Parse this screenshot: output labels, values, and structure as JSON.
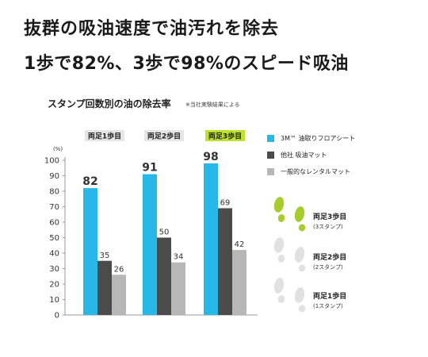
{
  "headline": {
    "line1": "抜群の吸油速度で油汚れを除去",
    "line2": "1歩で82%、3歩で98%のスピード吸油"
  },
  "chart_data": {
    "type": "bar",
    "title": "スタンプ回数別の油の除去率",
    "note": "※当社実験結果による",
    "ylabel": "(%)",
    "ylim": [
      0,
      100
    ],
    "yticks": [
      0,
      10,
      20,
      30,
      40,
      50,
      60,
      70,
      80,
      90,
      100
    ],
    "grid": false,
    "categories": [
      "両足1歩目",
      "両足2歩目",
      "両足3歩目"
    ],
    "highlight_category": "両足3歩目",
    "series": [
      {
        "name": "3M™ 油取りフロアシート",
        "color": "#27b8e8",
        "values": [
          82,
          91,
          98
        ]
      },
      {
        "name": "他社 吸油マット",
        "color": "#4b4b4b",
        "values": [
          35,
          50,
          69
        ]
      },
      {
        "name": "一般的なレンタルマット",
        "color": "#b7b7b7",
        "values": [
          26,
          34,
          42
        ]
      }
    ],
    "legend_position": "right"
  },
  "colors": {
    "highlight": "#bde22f",
    "category_box": "#e6e6e6",
    "footprint_green": "#a6cd2d",
    "footprint_gray": "#e1e1e1"
  },
  "steps": [
    {
      "label": "両足3歩目",
      "sub": "(3スタンプ)",
      "icon": "footprints-icon"
    },
    {
      "label": "両足2歩目",
      "sub": "(2スタンプ)",
      "icon": "footprints-icon"
    },
    {
      "label": "両足1歩目",
      "sub": "(1スタンプ)",
      "icon": "footprints-icon"
    }
  ]
}
